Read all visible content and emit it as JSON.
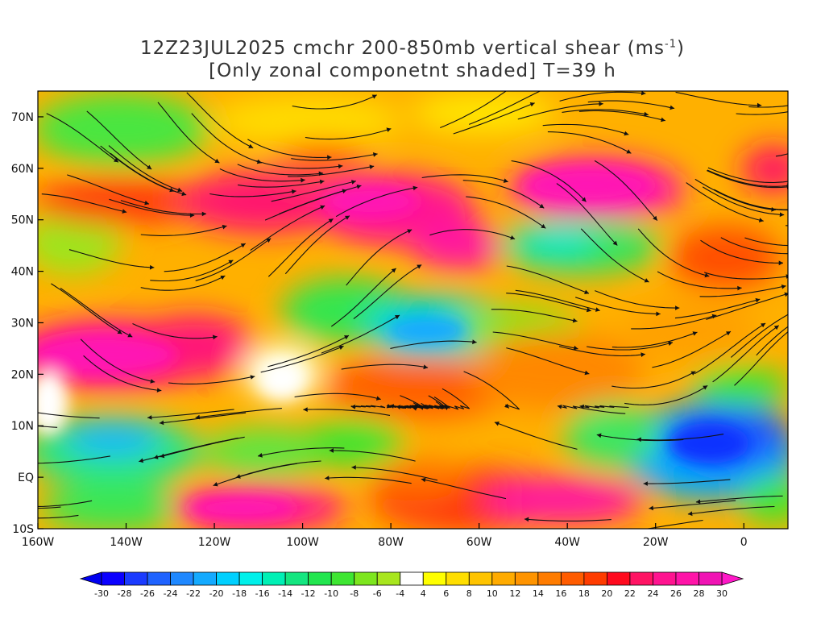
{
  "title": {
    "line1_prefix": "12Z23JUL2025 cmchr 200-850mb vertical shear (ms",
    "line1_sup": "-1",
    "line1_suffix": ")",
    "line2": "[Only zonal componetnt shaded] T=39 h"
  },
  "map": {
    "lon_range": [
      -160,
      10
    ],
    "lat_range": [
      -10,
      75
    ],
    "lat_labels": [
      "70N",
      "60N",
      "50N",
      "40N",
      "30N",
      "20N",
      "10N",
      "EQ",
      "10S"
    ],
    "lat_values": [
      70,
      60,
      50,
      40,
      30,
      20,
      10,
      0,
      -10
    ],
    "lon_labels": [
      "160W",
      "140W",
      "120W",
      "100W",
      "80W",
      "60W",
      "40W",
      "20W",
      "0"
    ],
    "lon_values": [
      -160,
      -140,
      -120,
      -100,
      -80,
      -60,
      -40,
      -20,
      0
    ]
  },
  "colorbar": {
    "labels": [
      "-30",
      "-28",
      "-26",
      "-24",
      "-22",
      "-20",
      "-18",
      "-16",
      "-14",
      "-12",
      "-10",
      "-8",
      "-6",
      "-4",
      "4",
      "6",
      "8",
      "10",
      "12",
      "14",
      "16",
      "18",
      "20",
      "22",
      "24",
      "26",
      "28",
      "30"
    ],
    "colors": [
      "#0b00ff",
      "#1b3bff",
      "#1f63ff",
      "#1f88ff",
      "#14aaff",
      "#00d0ff",
      "#00f0ea",
      "#00f0b5",
      "#14e680",
      "#22e64f",
      "#3ee632",
      "#7de61e",
      "#a8e61e",
      "#ffffff",
      "#ffff00",
      "#ffde00",
      "#ffc400",
      "#ffab00",
      "#ff9400",
      "#ff7c00",
      "#ff5c00",
      "#ff3c00",
      "#ff0a1e",
      "#ff1464",
      "#ff1490",
      "#ff14a8",
      "#f014b4"
    ],
    "under_color": "#0000f0",
    "over_color": "#ff18c8"
  }
}
